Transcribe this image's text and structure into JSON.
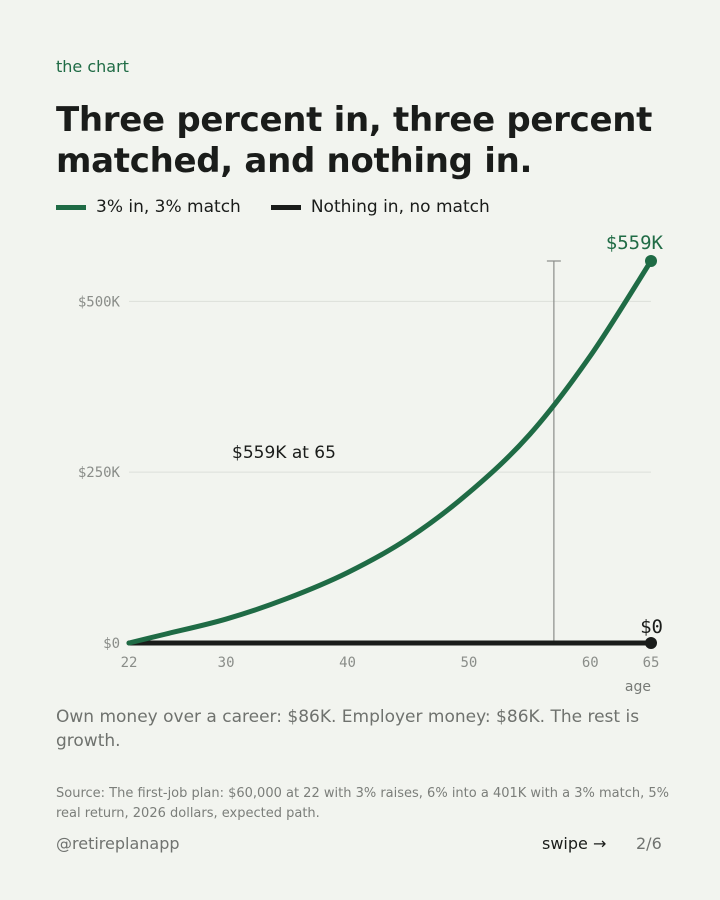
{
  "kicker": "the chart",
  "title": "Three percent in, three percent matched, and nothing in.",
  "chart_data": {
    "type": "line",
    "x": [
      22,
      25,
      30,
      35,
      40,
      45,
      50,
      55,
      60,
      65
    ],
    "series": [
      {
        "name": "3% in, 3% match",
        "color": "#1f6b45",
        "values": [
          0,
          13000,
          35000,
          65000,
          103000,
          153000,
          220000,
          305000,
          420000,
          559000
        ]
      },
      {
        "name": "Nothing in, no match",
        "color": "#1a1c1a",
        "values": [
          0,
          0,
          0,
          0,
          0,
          0,
          0,
          0,
          0,
          0
        ]
      }
    ],
    "xticks": [
      22,
      30,
      40,
      50,
      60,
      65
    ],
    "xtick_labels": [
      "22",
      "30",
      "40",
      "50",
      "60",
      "65"
    ],
    "yticks": [
      0,
      250000,
      500000
    ],
    "ytick_labels": [
      "$0",
      "$250K",
      "$500K"
    ],
    "xlim": [
      22,
      65
    ],
    "ylim": [
      0,
      559000
    ],
    "xlabel": "age",
    "ylabel": "",
    "grid": true,
    "end_labels": [
      "$559K",
      "$0"
    ],
    "marker_x": 57,
    "marker_range": [
      0,
      559000
    ],
    "annotation": "$559K at 65"
  },
  "takeaway": "Own money over a career: $86K. Employer money: $86K. The rest is growth.",
  "source": "Source: The first-job plan: $60,000 at 22 with 3% raises, 6% into a 401K with a 3% match, 5% real return, 2026 dollars, expected path.",
  "footer": {
    "handle": "@retireplanapp",
    "swipe": "swipe →",
    "page": "2/6"
  }
}
